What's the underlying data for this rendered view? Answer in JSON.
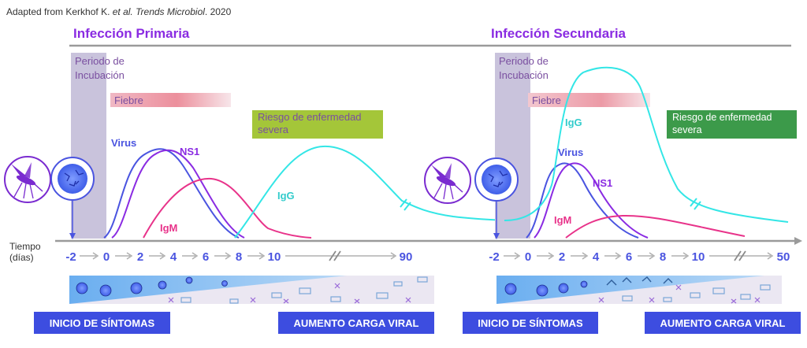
{
  "caption": {
    "prefix": "Adapted from Kerkhof K. ",
    "italic": "et al. Trends Microbiol",
    "suffix": ". 2020"
  },
  "panels": [
    {
      "title": "Infección Primaria",
      "incubation_label": [
        "Periodo de",
        "Incubación"
      ],
      "fever_label": "Fiebre",
      "risk_label": [
        "Riesgo de enfermedad",
        "severa"
      ],
      "risk_color": "#a4c639",
      "curve_labels": {
        "virus": "Virus",
        "ns1": "NS1",
        "igm": "IgM",
        "igg": "IgG"
      },
      "ticks": [
        "-2",
        "0",
        "2",
        "4",
        "6",
        "8",
        "10",
        "90"
      ],
      "onset_label": "INICIO DE SÍNTOMAS",
      "viral_label": "AUMENTO CARGA VIRAL"
    },
    {
      "title": "Infección Secundaria",
      "incubation_label": [
        "Periodo de",
        "Incubación"
      ],
      "fever_label": "Fiebre",
      "risk_label": [
        "Riesgo de enfermedad",
        "severa"
      ],
      "risk_color": "#3c9a4a",
      "curve_labels": {
        "virus": "Virus",
        "ns1": "NS1",
        "igm": "IgM",
        "igg": "IgG"
      },
      "ticks": [
        "-2",
        "0",
        "2",
        "4",
        "6",
        "8",
        "10",
        "50"
      ],
      "onset_label": "INICIO DE SÍNTOMAS",
      "viral_label": "AUMENTO CARGA VIRAL"
    }
  ],
  "axis": {
    "title": [
      "Tiempo",
      "(días)"
    ]
  },
  "colors": {
    "virus": "#4a54e0",
    "ns1": "#8a2be2",
    "igm": "#e8338a",
    "igg": "#33e6e6",
    "title": "#8a2be2",
    "button": "#3d4de0",
    "incubation": "#c9c3dc",
    "mosquito": "#7a2bd0",
    "virion": "#4a6cf0"
  },
  "icons": [
    "mosquito-icon",
    "virus-particle-icon"
  ]
}
